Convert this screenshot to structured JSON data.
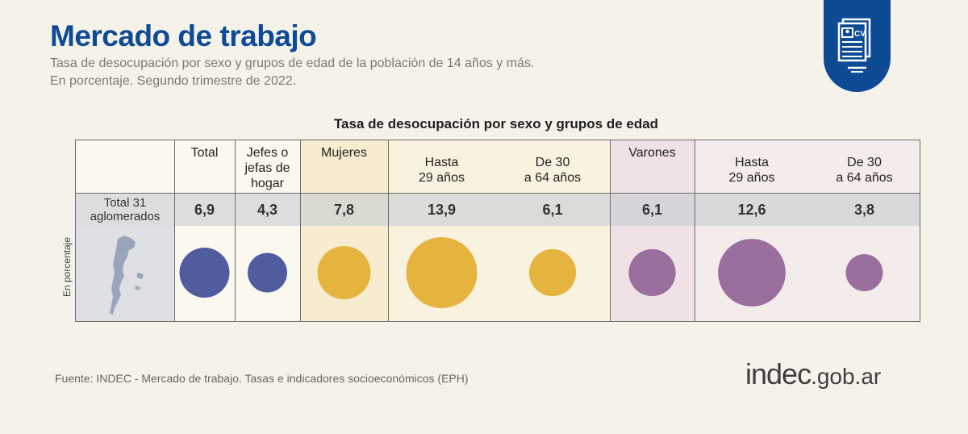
{
  "title": "Mercado de trabajo",
  "subtitle_line1": "Tasa de desocupación por sexo y grupos de edad de la población de 14 años y más.",
  "subtitle_line2": "En porcentaje. Segundo trimestre de 2022.",
  "badge_icon": "cv-document-icon",
  "badge_text": "CV",
  "source": "Fuente: INDEC - Mercado de trabajo. Tasas e indicadores socioeconómicos (EPH)",
  "logo": {
    "main": "indec",
    "domain": ".gob.ar"
  },
  "colors": {
    "title": "#0e4b94",
    "total": "#515c9e",
    "mujeres": "#e4b43f",
    "varones": "#9a6f9e",
    "mujeres_bg": "#f7ecd0",
    "varones_bg": "#efe1e5"
  },
  "chart_data": {
    "type": "table",
    "title": "Tasa de desocupación por sexo y grupos de edad",
    "ylabel": "En porcentaje",
    "row_label_lines": [
      "Total 31",
      "aglomerados"
    ],
    "columns": [
      {
        "label_lines": [
          "Total"
        ],
        "value": 6.9,
        "display": "6,9",
        "group": "total"
      },
      {
        "label_lines": [
          "Jefes o",
          "jefas de",
          "hogar"
        ],
        "value": 4.3,
        "display": "4,3",
        "group": "total"
      },
      {
        "label_lines": [
          "Mujeres"
        ],
        "value": 7.8,
        "display": "7,8",
        "group": "mujeres"
      },
      {
        "label_lines": [
          "Hasta",
          "29 años"
        ],
        "value": 13.9,
        "display": "13,9",
        "group": "mujeres"
      },
      {
        "label_lines": [
          "De 30",
          "a 64 años"
        ],
        "value": 6.1,
        "display": "6,1",
        "group": "mujeres"
      },
      {
        "label_lines": [
          "Varones"
        ],
        "value": 6.1,
        "display": "6,1",
        "group": "varones"
      },
      {
        "label_lines": [
          "Hasta",
          "29 años"
        ],
        "value": 12.6,
        "display": "12,6",
        "group": "varones"
      },
      {
        "label_lines": [
          "De 30",
          "a 64 años"
        ],
        "value": 3.8,
        "display": "3,8",
        "group": "varones"
      }
    ]
  }
}
